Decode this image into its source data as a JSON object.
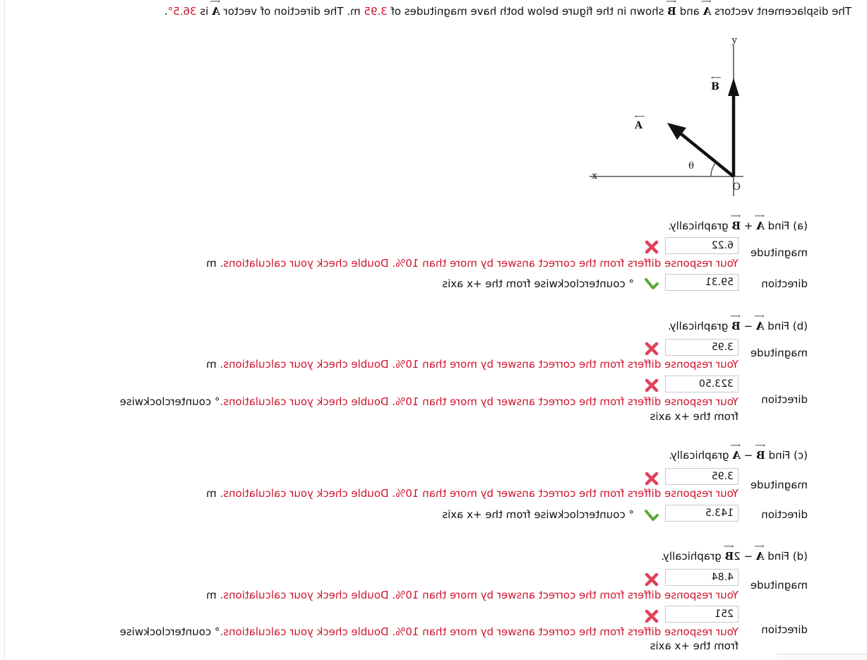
{
  "problem": {
    "intro_a": "The displacement vectors ",
    "vecA": "A",
    "and": " and ",
    "vecB": "B",
    "intro_b": " shown in the figure below both have magnitudes of ",
    "magnitude_value": "3.95",
    "intro_c": " m. The direction of vector ",
    "intro_d": " is ",
    "direction_value": "36.5°",
    "intro_e": "."
  },
  "figure": {
    "y_label": "y",
    "x_label": "x",
    "origin_label": "O",
    "theta_label": "θ",
    "vector_a_label": "A",
    "vector_b_label": "B"
  },
  "parts": [
    {
      "prefix": "(a) Find ",
      "op1": "A",
      "operator": " + ",
      "op2": "B",
      "suffix": " graphically.",
      "magnitude": {
        "label": "magnitude",
        "value": "6.22",
        "status": "incorrect",
        "feedback": "Your response differs from the correct answer by more than 10%. Double check your calculations.",
        "unit": " m"
      },
      "direction": {
        "label": "direction",
        "value": "59.31",
        "status": "correct",
        "unit": "° counterclockwise from the +x axis"
      }
    },
    {
      "prefix": "(b) Find ",
      "op1": "A",
      "operator": " − ",
      "op2": "B",
      "suffix": " graphically.",
      "magnitude": {
        "label": "magnitude",
        "value": "3.95",
        "status": "incorrect",
        "feedback": "Your response differs from the correct answer by more than 10%. Double check your calculations.",
        "unit": " m"
      },
      "direction": {
        "label": "direction",
        "value": "323.50",
        "status": "incorrect",
        "feedback": "Your response differs from the correct answer by more than 10%. Double check your calculations.",
        "unit_line1": "° counterclockwise",
        "unit_line2": "from the +x axis"
      }
    },
    {
      "prefix": "(c) Find ",
      "op1": "B",
      "operator": " − ",
      "op2": "A",
      "suffix": " graphically.",
      "magnitude": {
        "label": "magnitude",
        "value": "3.95",
        "status": "incorrect",
        "feedback": "Your response differs from the correct answer by more than 10%. Double check your calculations.",
        "unit": " m"
      },
      "direction": {
        "label": "direction",
        "value": "143.5",
        "status": "correct",
        "unit": "° counterclockwise from the +x axis"
      }
    },
    {
      "prefix": "(d) Find ",
      "op1": "A",
      "operator": " − 2",
      "op2": "B",
      "suffix": " graphically.",
      "magnitude": {
        "label": "magnitude",
        "value": "4.84",
        "status": "incorrect",
        "feedback": "Your response differs from the correct answer by more than 10%. Double check your calculations.",
        "unit": " m"
      },
      "direction": {
        "label": "direction",
        "value": "251",
        "status": "incorrect",
        "feedback": "Your response differs from the correct answer by more than 10%. Double check your calculations.",
        "unit_line1": "° counterclockwise",
        "unit_line2": "from the +x axis"
      }
    }
  ],
  "colors": {
    "accent_red": "#d0142c",
    "check_green": "#5aa832",
    "cross_red": "#e0435a"
  }
}
